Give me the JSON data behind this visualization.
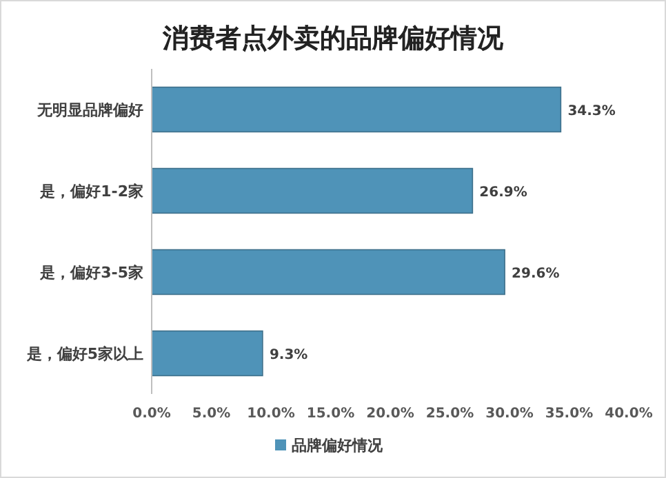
{
  "chart_data": {
    "type": "bar",
    "orientation": "horizontal",
    "title": "消费者点外卖的品牌偏好情况",
    "categories": [
      "无明显品牌偏好",
      "是，偏好1-2家",
      "是，偏好3-5家",
      "是，偏好5家以上"
    ],
    "series": [
      {
        "name": "品牌偏好情况",
        "color": "#4f93b8",
        "values": [
          34.3,
          26.9,
          29.6,
          9.3
        ],
        "value_labels": [
          "34.3%",
          "26.9%",
          "29.6%",
          "9.3%"
        ]
      }
    ],
    "xlim": [
      0,
      40
    ],
    "xticks": [
      {
        "value": 0,
        "label": "0.0%"
      },
      {
        "value": 5,
        "label": "5.0%"
      },
      {
        "value": 10,
        "label": "10.0%"
      },
      {
        "value": 15,
        "label": "15.0%"
      },
      {
        "value": 20,
        "label": "20.0%"
      },
      {
        "value": 25,
        "label": "25.0%"
      },
      {
        "value": 30,
        "label": "30.0%"
      },
      {
        "value": 35,
        "label": "35.0%"
      },
      {
        "value": 40,
        "label": "40.0%"
      }
    ],
    "legend": "bottom"
  }
}
